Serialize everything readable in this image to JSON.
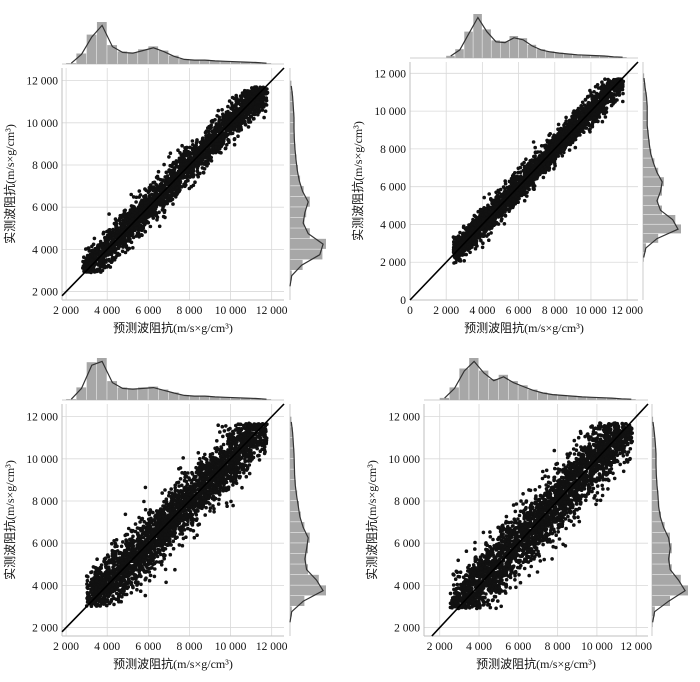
{
  "figure": {
    "colors": {
      "points": "#111111",
      "reference_line": "#000000",
      "grid": "#d9d9d9",
      "hist_bar": "#a7a7a7",
      "density_curve": "#333333",
      "axis": "#bfbfbf"
    }
  },
  "chart_data": [
    {
      "type": "scatter",
      "panel": "top-left",
      "xlabel": "预测波阻抗(m/s×g/cm³)",
      "ylabel": "实测波阻抗(m/s×g/cm³)",
      "xlim": [
        1800,
        12600
      ],
      "ylim": [
        1600,
        12600
      ],
      "xticks": [
        2000,
        4000,
        6000,
        8000,
        10000,
        12000
      ],
      "yticks": [
        2000,
        4000,
        6000,
        8000,
        10000,
        12000
      ],
      "xtick_labels": [
        "2 000",
        "4 000",
        "6 000",
        "8 000",
        "10 000",
        "12 000"
      ],
      "ytick_labels": [
        "2 000",
        "4 000",
        "6 000",
        "8 000",
        "10 000",
        "12 000"
      ],
      "grid": true,
      "reference_line": "y = x",
      "point_cloud": {
        "x_range": [
          2800,
          11800
        ],
        "y_range": [
          2900,
          11700
        ],
        "spread": 500,
        "n": 2600
      },
      "marginal_x_hist": {
        "bins": [
          2000,
          2500,
          3000,
          3500,
          4000,
          4500,
          5000,
          5500,
          6000,
          6500,
          7000,
          7500,
          8000,
          8500,
          9000,
          9500,
          10000,
          10500,
          11000,
          11500,
          12000
        ],
        "counts": [
          0.02,
          0.25,
          0.7,
          1.0,
          0.45,
          0.3,
          0.28,
          0.35,
          0.42,
          0.32,
          0.2,
          0.12,
          0.1,
          0.1,
          0.08,
          0.07,
          0.06,
          0.05,
          0.04,
          0.02
        ]
      },
      "marginal_y_hist": {
        "bins": [
          2000,
          2500,
          3000,
          3500,
          4000,
          4500,
          5000,
          5500,
          6000,
          6500,
          7000,
          7500,
          8000,
          8500,
          9000,
          9500,
          10000,
          10500,
          11000,
          11500,
          12000
        ],
        "counts": [
          0.0,
          0.05,
          0.35,
          0.9,
          1.0,
          0.55,
          0.4,
          0.45,
          0.55,
          0.38,
          0.28,
          0.22,
          0.18,
          0.15,
          0.13,
          0.12,
          0.12,
          0.1,
          0.08,
          0.04
        ]
      }
    },
    {
      "type": "scatter",
      "panel": "top-right",
      "xlabel": "预测波阻抗(m/s×g/cm³)",
      "ylabel": "实测波阻抗(m/s×g/cm³)",
      "xlim": [
        0,
        12600
      ],
      "ylim": [
        0,
        12600
      ],
      "xticks": [
        0,
        2000,
        4000,
        6000,
        8000,
        10000,
        12000
      ],
      "yticks": [
        0,
        2000,
        4000,
        6000,
        8000,
        10000,
        12000
      ],
      "xtick_labels": [
        "0",
        "2 000",
        "4 000",
        "6 000",
        "8 000",
        "10 000",
        "12 000"
      ],
      "ytick_labels": [
        "0",
        "2 000",
        "4 000",
        "6 000",
        "8 000",
        "10 000",
        "12 000"
      ],
      "grid": true,
      "reference_line": "y = x",
      "point_cloud": {
        "x_range": [
          2400,
          11800
        ],
        "y_range": [
          1700,
          11700
        ],
        "spread": 450,
        "n": 2600
      },
      "marginal_x_hist": {
        "bins": [
          2000,
          2500,
          3000,
          3500,
          4000,
          4500,
          5000,
          5500,
          6000,
          6500,
          7000,
          7500,
          8000,
          8500,
          9000,
          9500,
          10000,
          10500,
          11000,
          11500,
          12000
        ],
        "counts": [
          0.05,
          0.2,
          0.6,
          1.0,
          0.65,
          0.4,
          0.38,
          0.5,
          0.45,
          0.3,
          0.2,
          0.15,
          0.12,
          0.1,
          0.08,
          0.07,
          0.06,
          0.05,
          0.03,
          0.02
        ]
      },
      "marginal_y_hist": {
        "bins": [
          2000,
          2500,
          3000,
          3500,
          4000,
          4500,
          5000,
          5500,
          6000,
          6500,
          7000,
          7500,
          8000,
          8500,
          9000,
          9500,
          10000,
          10500,
          11000,
          11500,
          12000
        ],
        "counts": [
          0.02,
          0.08,
          0.4,
          1.0,
          0.85,
          0.5,
          0.4,
          0.5,
          0.55,
          0.4,
          0.3,
          0.22,
          0.18,
          0.15,
          0.12,
          0.12,
          0.12,
          0.1,
          0.06,
          0.03
        ]
      }
    },
    {
      "type": "scatter",
      "panel": "bottom-left",
      "xlabel": "预测波阻抗(m/s×g/cm³)",
      "ylabel": "实测波阻抗(m/s×g/cm³)",
      "xlim": [
        1800,
        12600
      ],
      "ylim": [
        1600,
        12600
      ],
      "xticks": [
        2000,
        4000,
        6000,
        8000,
        10000,
        12000
      ],
      "yticks": [
        2000,
        4000,
        6000,
        8000,
        10000,
        12000
      ],
      "xtick_labels": [
        "2 000",
        "4 000",
        "6 000",
        "8 000",
        "10 000",
        "12 000"
      ],
      "ytick_labels": [
        "2 000",
        "4 000",
        "6 000",
        "8 000",
        "10 000",
        "12 000"
      ],
      "grid": true,
      "reference_line": "y = x",
      "point_cloud": {
        "x_range": [
          3000,
          11800
        ],
        "y_range": [
          3000,
          11700
        ],
        "spread": 800,
        "n": 3000
      },
      "marginal_x_hist": {
        "bins": [
          2000,
          2500,
          3000,
          3500,
          4000,
          4500,
          5000,
          5500,
          6000,
          6500,
          7000,
          7500,
          8000,
          8500,
          9000,
          9500,
          10000,
          10500,
          11000,
          11500,
          12000
        ],
        "counts": [
          0.02,
          0.3,
          0.9,
          1.0,
          0.45,
          0.3,
          0.28,
          0.3,
          0.32,
          0.25,
          0.18,
          0.12,
          0.1,
          0.1,
          0.08,
          0.07,
          0.06,
          0.05,
          0.04,
          0.02
        ]
      },
      "marginal_y_hist": {
        "bins": [
          2000,
          2500,
          3000,
          3500,
          4000,
          4500,
          5000,
          5500,
          6000,
          6500,
          7000,
          7500,
          8000,
          8500,
          9000,
          9500,
          10000,
          10500,
          11000,
          11500,
          12000
        ],
        "counts": [
          0.0,
          0.05,
          0.4,
          1.0,
          0.8,
          0.5,
          0.45,
          0.5,
          0.55,
          0.4,
          0.3,
          0.25,
          0.2,
          0.16,
          0.14,
          0.13,
          0.12,
          0.1,
          0.08,
          0.04
        ]
      }
    },
    {
      "type": "scatter",
      "panel": "bottom-right",
      "xlabel": "预测波阻抗(m/s×g/cm³)",
      "ylabel": "实测波阻抗(m/s×g/cm³)",
      "xlim": [
        1200,
        12600
      ],
      "ylim": [
        1600,
        12600
      ],
      "xticks": [
        2000,
        4000,
        6000,
        8000,
        10000,
        12000
      ],
      "yticks": [
        2000,
        4000,
        6000,
        8000,
        10000,
        12000
      ],
      "xtick_labels": [
        "2 000",
        "4 000",
        "6 000",
        "8 000",
        "10 000",
        "12 000"
      ],
      "ytick_labels": [
        "2 000",
        "4 000",
        "6 000",
        "8 000",
        "10 000",
        "12 000"
      ],
      "grid": true,
      "reference_line": "y = x",
      "point_cloud": {
        "x_range": [
          2500,
          11800
        ],
        "y_range": [
          2900,
          11700
        ],
        "spread": 900,
        "n": 3000
      },
      "marginal_x_hist": {
        "bins": [
          2000,
          2500,
          3000,
          3500,
          4000,
          4500,
          5000,
          5500,
          6000,
          6500,
          7000,
          7500,
          8000,
          8500,
          9000,
          9500,
          10000,
          10500,
          11000,
          11500,
          12000
        ],
        "counts": [
          0.05,
          0.3,
          0.75,
          1.0,
          0.7,
          0.5,
          0.6,
          0.45,
          0.35,
          0.25,
          0.18,
          0.14,
          0.12,
          0.1,
          0.08,
          0.07,
          0.06,
          0.05,
          0.03,
          0.02
        ]
      },
      "marginal_y_hist": {
        "bins": [
          2000,
          2500,
          3000,
          3500,
          4000,
          4500,
          5000,
          5500,
          6000,
          6500,
          7000,
          7500,
          8000,
          8500,
          9000,
          9500,
          10000,
          10500,
          11000,
          11500,
          12000
        ],
        "counts": [
          0.02,
          0.08,
          0.5,
          1.0,
          0.8,
          0.55,
          0.5,
          0.55,
          0.5,
          0.35,
          0.25,
          0.2,
          0.18,
          0.15,
          0.13,
          0.12,
          0.12,
          0.1,
          0.07,
          0.03
        ]
      }
    }
  ]
}
